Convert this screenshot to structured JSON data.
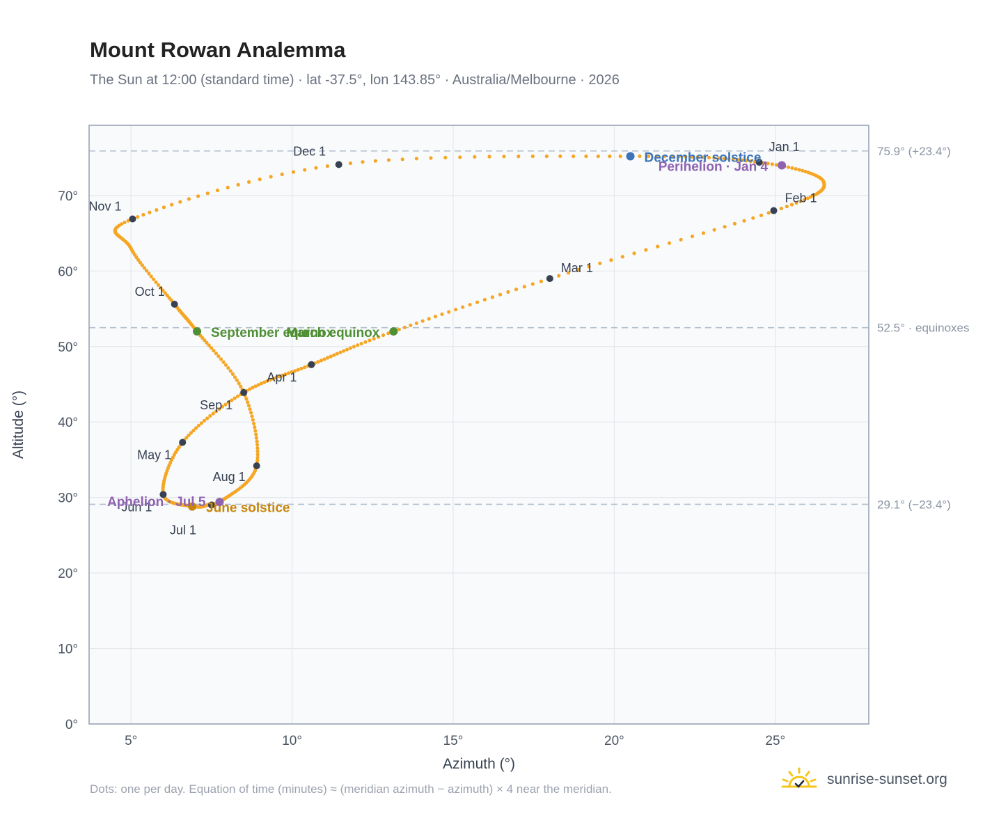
{
  "header": {
    "title": "Mount Rowan Analemma",
    "subtitle": "The Sun at 12:00 (standard time) · lat -37.5°, lon 143.85° · Australia/Melbourne · 2026"
  },
  "footer": {
    "note": "Dots: one per day. Equation of time (minutes) ≈ (meridian azimuth − azimuth) × 4 near the meridian.",
    "brand": "sunrise-sunset.org"
  },
  "colors": {
    "curve": "#f5a623",
    "month_marker": "#374151",
    "december_solstice": "#3b74b9",
    "june_solstice": "#c8860b",
    "equinox": "#4f8f34",
    "apsis": "#8e63b0",
    "plot_bg": "#f8fafc",
    "grid": "#e5e7eb",
    "axis": "#9ca3af"
  },
  "chart_data": {
    "type": "scatter",
    "xlabel": "Azimuth (°)",
    "ylabel": "Altitude (°)",
    "xlim": [
      3.7,
      27.9
    ],
    "ylim": [
      0,
      79.3
    ],
    "x_ticks": [
      5,
      10,
      15,
      20,
      25
    ],
    "x_tick_labels": [
      "5°",
      "10°",
      "15°",
      "20°",
      "25°"
    ],
    "y_ticks": [
      0,
      10,
      20,
      30,
      40,
      50,
      60,
      70
    ],
    "y_tick_labels": [
      "0°",
      "10°",
      "20°",
      "30°",
      "40°",
      "50°",
      "60°",
      "70°"
    ],
    "grid": true,
    "series": [
      {
        "points": [
          [
            24.5,
            74.4
          ],
          [
            26.5,
            71.8
          ],
          [
            25.0,
            68.0
          ],
          [
            18.0,
            59.0
          ],
          [
            13.15,
            52.0
          ],
          [
            10.6,
            47.6
          ],
          [
            8.5,
            43.9
          ],
          [
            6.6,
            37.3
          ],
          [
            6.0,
            30.4
          ],
          [
            7.0,
            28.8
          ],
          [
            7.5,
            29.2
          ],
          [
            7.8,
            29.5
          ],
          [
            8.9,
            34.2
          ],
          [
            8.5,
            43.9
          ],
          [
            7.05,
            52.0
          ],
          [
            6.35,
            55.6
          ],
          [
            5.0,
            63.0
          ],
          [
            5.05,
            66.9
          ],
          [
            11.45,
            74.1
          ],
          [
            20.5,
            75.2
          ],
          [
            24.5,
            74.4
          ]
        ]
      }
    ],
    "month_markers": [
      {
        "label": "Jan 1",
        "x": 24.5,
        "y": 74.4
      },
      {
        "label": "Feb 1",
        "x": 24.95,
        "y": 68.0
      },
      {
        "label": "Mar 1",
        "x": 18.0,
        "y": 59.0
      },
      {
        "label": "Apr 1",
        "x": 10.6,
        "y": 47.6
      },
      {
        "label": "May 1",
        "x": 6.6,
        "y": 37.3
      },
      {
        "label": "Jun 1",
        "x": 6.0,
        "y": 30.4
      },
      {
        "label": "Jul 1",
        "x": 7.5,
        "y": 29.0
      },
      {
        "label": "Aug 1",
        "x": 8.9,
        "y": 34.2
      },
      {
        "label": "Sep 1",
        "x": 8.5,
        "y": 43.9
      },
      {
        "label": "Oct 1",
        "x": 6.35,
        "y": 55.6
      },
      {
        "label": "Nov 1",
        "x": 5.05,
        "y": 66.9
      },
      {
        "label": "Dec 1",
        "x": 11.45,
        "y": 74.1
      }
    ],
    "events": [
      {
        "label": "December solstice",
        "x": 20.5,
        "y": 75.2,
        "color_key": "december_solstice"
      },
      {
        "label": "Perihelion · Jan 4",
        "x": 25.2,
        "y": 74.0,
        "color_key": "apsis"
      },
      {
        "label": "March equinox",
        "x": 13.15,
        "y": 52.0,
        "color_key": "equinox"
      },
      {
        "label": "September equinox",
        "x": 7.05,
        "y": 52.0,
        "color_key": "equinox"
      },
      {
        "label": "June solstice",
        "x": 6.9,
        "y": 28.8,
        "color_key": "june_solstice"
      },
      {
        "label": "Aphelion · Jul 5",
        "x": 7.75,
        "y": 29.4,
        "color_key": "apsis"
      }
    ],
    "reference_lines": [
      {
        "y": 75.9,
        "label": "75.9° (+23.4°)"
      },
      {
        "y": 52.5,
        "label": "52.5° · equinoxes"
      },
      {
        "y": 29.1,
        "label": "29.1° (−23.4°)"
      }
    ]
  }
}
